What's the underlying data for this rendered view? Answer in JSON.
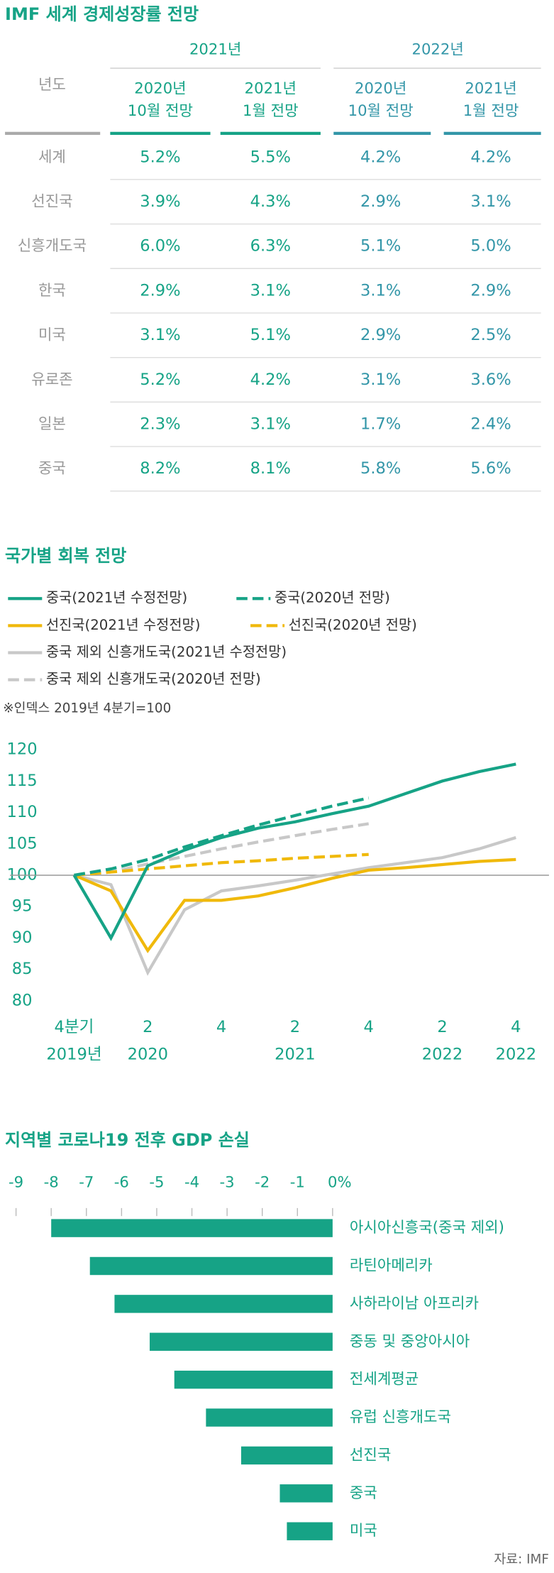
{
  "table": {
    "title": "IMF 세계 경제성장률 전망",
    "group_headers": [
      "2021년",
      "2022년"
    ],
    "row_header": "년도",
    "sub_headers": [
      [
        "2020년",
        "10월 전망"
      ],
      [
        "2021년",
        "1월 전망"
      ],
      [
        "2020년",
        "10월 전망"
      ],
      [
        "2021년",
        "1월 전망"
      ]
    ],
    "rows": [
      [
        "세계",
        "5.2%",
        "5.5%",
        "4.2%",
        "4.2%"
      ],
      [
        "선진국",
        "3.9%",
        "4.3%",
        "2.9%",
        "3.1%"
      ],
      [
        "신흥개도국",
        "6.0%",
        "6.3%",
        "5.1%",
        "5.0%"
      ],
      [
        "한국",
        "2.9%",
        "3.1%",
        "3.1%",
        "2.9%"
      ],
      [
        "미국",
        "3.1%",
        "5.1%",
        "2.9%",
        "2.5%"
      ],
      [
        "유로존",
        "5.2%",
        "4.2%",
        "3.1%",
        "3.6%"
      ],
      [
        "일본",
        "2.3%",
        "3.1%",
        "1.7%",
        "2.4%"
      ],
      [
        "중국",
        "8.2%",
        "8.1%",
        "5.8%",
        "5.6%"
      ]
    ]
  },
  "chart_data": [
    {
      "type": "line",
      "title": "국가별 회복 전망",
      "note": "※인덱스 2019년 4분기=100",
      "categories": [
        "4분기",
        null,
        "2",
        null,
        "4",
        null,
        "2",
        null,
        "4",
        null,
        "2",
        null,
        "4"
      ],
      "categories_line2": [
        "2019년",
        null,
        "2020",
        null,
        null,
        null,
        "2021",
        null,
        null,
        null,
        "2022",
        null,
        "2022"
      ],
      "ylim": [
        80,
        120
      ],
      "yticks": [
        80,
        85,
        90,
        95,
        100,
        105,
        110,
        115,
        120
      ],
      "reference_line": 100,
      "series": [
        {
          "name": "중국(2021년 수정전망)",
          "color": "#16a386",
          "dashed": false,
          "values": [
            100,
            90,
            101.5,
            104,
            106,
            107.5,
            108.5,
            109.8,
            111,
            113,
            115,
            116.5,
            117.7
          ]
        },
        {
          "name": "중국(2020년 전망)",
          "color": "#16a386",
          "dashed": true,
          "values": [
            100,
            101,
            102.5,
            104.5,
            106.3,
            108,
            109.5,
            111,
            112.3,
            null,
            null,
            null,
            null
          ]
        },
        {
          "name": "선진국(2021년 수정전망)",
          "color": "#f0b90b",
          "dashed": false,
          "values": [
            100,
            97.5,
            88,
            96,
            96,
            96.7,
            98,
            99.5,
            100.8,
            101.2,
            101.7,
            102.2,
            102.5
          ]
        },
        {
          "name": "선진국(2020년 전망)",
          "color": "#f0b90b",
          "dashed": true,
          "values": [
            100,
            100.5,
            101,
            101.5,
            102,
            102.3,
            102.7,
            103,
            103.3,
            null,
            null,
            null,
            null
          ]
        },
        {
          "name": "중국 제외 신흥개도국(2021년 수정전망)",
          "color": "#c8c8c8",
          "dashed": false,
          "values": [
            100,
            98.5,
            84.5,
            94.5,
            97.5,
            98.3,
            99.2,
            100.2,
            101.2,
            102,
            102.8,
            104.2,
            106
          ]
        },
        {
          "name": "중국 제외 신흥개도국(2020년 전망)",
          "color": "#c8c8c8",
          "dashed": true,
          "values": [
            100,
            100.5,
            101.8,
            103,
            104.2,
            105.3,
            106.3,
            107.3,
            108.2,
            null,
            null,
            null,
            null
          ]
        }
      ]
    },
    {
      "type": "hbar",
      "title": "지역별 코로나19 전후 GDP 손실",
      "color": "#16a386",
      "categories": [
        "아시아신흥국(중국 제외)",
        "라틴아메리카",
        "사하라이남 아프리카",
        "중동 및 중앙아시아",
        "전세계평균",
        "유럽 신흥개도국",
        "선진국",
        "중국",
        "미국"
      ],
      "values": [
        -8.0,
        -6.9,
        -6.2,
        -5.2,
        -4.5,
        -3.6,
        -2.6,
        -1.5,
        -1.3
      ],
      "xlim": [
        -9,
        0
      ],
      "xticks": [
        -9,
        -8,
        -7,
        -6,
        -5,
        -4,
        -3,
        -2,
        -1,
        {
          "value": 0,
          "label": "0%"
        }
      ]
    }
  ],
  "source": "자료: IMF"
}
